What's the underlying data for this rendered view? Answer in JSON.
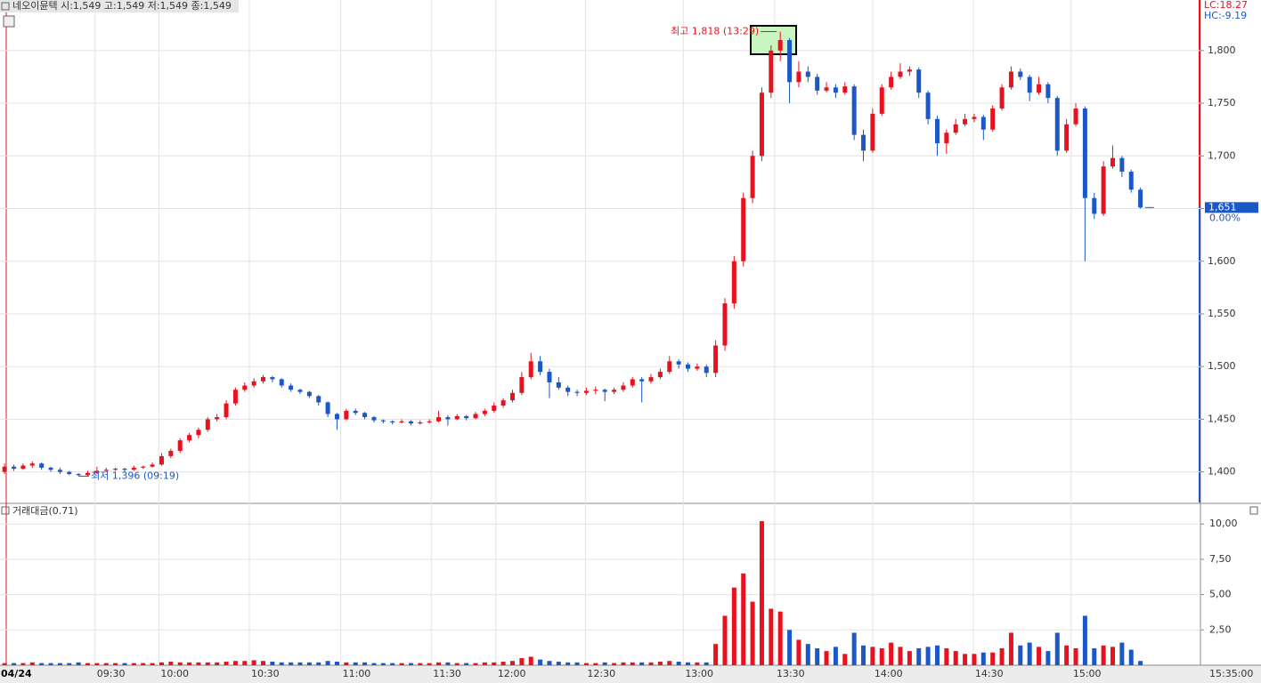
{
  "header": {
    "title": "네오이뮨텍 시:1,549 고:1,549 저:1,549 종:1,549",
    "lc": "LC:18.27",
    "hc": "HC:-9.19"
  },
  "chart_data": [
    {
      "type": "candlestick",
      "up_color": "#e8121e",
      "down_color": "#1b57c6",
      "grid": true,
      "xlim": [
        0,
        130
      ],
      "xticks": [
        {
          "value": 10.3,
          "label": "09:30"
        },
        {
          "value": 17.2,
          "label": "10:00"
        },
        {
          "value": 27,
          "label": "10:30"
        },
        {
          "value": 36.9,
          "label": "11:00"
        },
        {
          "value": 46.7,
          "label": "11:30"
        },
        {
          "value": 53.7,
          "label": "12:00"
        },
        {
          "value": 63.4,
          "label": "12:30"
        },
        {
          "value": 74,
          "label": "13:00"
        },
        {
          "value": 83.9,
          "label": "13:30"
        },
        {
          "value": 94.5,
          "label": "14:00"
        },
        {
          "value": 105.4,
          "label": "14:30"
        },
        {
          "value": 116,
          "label": "15:00"
        }
      ],
      "ylim": [
        1371,
        1848
      ],
      "yticks": [
        {
          "value": 1400,
          "label": "1,400"
        },
        {
          "value": 1450,
          "label": "1,450"
        },
        {
          "value": 1500,
          "label": "1,500"
        },
        {
          "value": 1550,
          "label": "1,550"
        },
        {
          "value": 1600,
          "label": "1,600"
        },
        {
          "value": 1650,
          "label": "1,650"
        },
        {
          "value": 1700,
          "label": "1,700"
        },
        {
          "value": 1750,
          "label": "1,750"
        },
        {
          "value": 1800,
          "label": "1,800"
        }
      ],
      "date": "04/24",
      "end_time": "15:35:00",
      "last_price": {
        "value": 1651,
        "label": "1,651"
      },
      "change": "0.00%",
      "annotations": [
        "최고 1,818 (13:29)",
        "최저 1,396 (09:19)"
      ],
      "candles": [
        [
          1400,
          1408,
          1398,
          1405
        ],
        [
          1405,
          1407,
          1401,
          1403
        ],
        [
          1403,
          1408,
          1402,
          1406
        ],
        [
          1406,
          1410,
          1404,
          1408
        ],
        [
          1408,
          1409,
          1402,
          1404
        ],
        [
          1404,
          1405,
          1400,
          1402
        ],
        [
          1402,
          1404,
          1398,
          1400
        ],
        [
          1400,
          1401,
          1397,
          1398
        ],
        [
          1398,
          1399,
          1396,
          1397
        ],
        [
          1397,
          1401,
          1396,
          1399
        ],
        [
          1399,
          1405,
          1398,
          1401
        ],
        [
          1401,
          1404,
          1400,
          1402
        ],
        [
          1402,
          1404,
          1401,
          1403
        ],
        [
          1403,
          1404,
          1400,
          1402
        ],
        [
          1402,
          1406,
          1401,
          1404
        ],
        [
          1404,
          1406,
          1403,
          1405
        ],
        [
          1405,
          1409,
          1404,
          1407
        ],
        [
          1407,
          1418,
          1406,
          1415
        ],
        [
          1415,
          1422,
          1413,
          1420
        ],
        [
          1420,
          1432,
          1418,
          1430
        ],
        [
          1430,
          1437,
          1428,
          1435
        ],
        [
          1435,
          1442,
          1432,
          1440
        ],
        [
          1440,
          1452,
          1438,
          1450
        ],
        [
          1450,
          1455,
          1448,
          1452
        ],
        [
          1452,
          1468,
          1450,
          1465
        ],
        [
          1465,
          1480,
          1463,
          1478
        ],
        [
          1478,
          1485,
          1476,
          1482
        ],
        [
          1482,
          1489,
          1480,
          1486
        ],
        [
          1486,
          1492,
          1484,
          1490
        ],
        [
          1490,
          1491,
          1485,
          1488
        ],
        [
          1488,
          1489,
          1480,
          1482
        ],
        [
          1482,
          1484,
          1476,
          1478
        ],
        [
          1478,
          1479,
          1474,
          1476
        ],
        [
          1476,
          1477,
          1470,
          1472
        ],
        [
          1472,
          1473,
          1463,
          1466
        ],
        [
          1466,
          1467,
          1452,
          1455
        ],
        [
          1455,
          1456,
          1440,
          1450
        ],
        [
          1450,
          1460,
          1449,
          1458
        ],
        [
          1458,
          1460,
          1454,
          1456
        ],
        [
          1456,
          1457,
          1450,
          1452
        ],
        [
          1452,
          1453,
          1447,
          1449
        ],
        [
          1449,
          1450,
          1446,
          1448
        ],
        [
          1448,
          1449,
          1445,
          1447
        ],
        [
          1447,
          1450,
          1446,
          1448
        ],
        [
          1448,
          1449,
          1444,
          1446
        ],
        [
          1446,
          1449,
          1445,
          1447
        ],
        [
          1447,
          1450,
          1446,
          1448
        ],
        [
          1448,
          1458,
          1447,
          1452
        ],
        [
          1452,
          1454,
          1444,
          1450
        ],
        [
          1450,
          1455,
          1449,
          1453
        ],
        [
          1453,
          1454,
          1449,
          1451
        ],
        [
          1451,
          1457,
          1450,
          1455
        ],
        [
          1455,
          1460,
          1453,
          1458
        ],
        [
          1458,
          1466,
          1456,
          1463
        ],
        [
          1463,
          1470,
          1461,
          1468
        ],
        [
          1468,
          1478,
          1466,
          1475
        ],
        [
          1475,
          1495,
          1473,
          1490
        ],
        [
          1490,
          1513,
          1488,
          1505
        ],
        [
          1505,
          1510,
          1492,
          1495
        ],
        [
          1495,
          1498,
          1470,
          1485
        ],
        [
          1485,
          1490,
          1478,
          1480
        ],
        [
          1480,
          1482,
          1472,
          1476
        ],
        [
          1476,
          1478,
          1472,
          1475
        ],
        [
          1475,
          1480,
          1473,
          1477
        ],
        [
          1477,
          1481,
          1474,
          1478
        ],
        [
          1478,
          1479,
          1467,
          1476
        ],
        [
          1476,
          1480,
          1474,
          1478
        ],
        [
          1478,
          1485,
          1476,
          1482
        ],
        [
          1482,
          1490,
          1480,
          1488
        ],
        [
          1488,
          1490,
          1466,
          1486
        ],
        [
          1486,
          1493,
          1484,
          1490
        ],
        [
          1490,
          1498,
          1488,
          1495
        ],
        [
          1495,
          1510,
          1493,
          1505
        ],
        [
          1505,
          1507,
          1498,
          1502
        ],
        [
          1502,
          1504,
          1495,
          1498
        ],
        [
          1498,
          1503,
          1496,
          1500
        ],
        [
          1500,
          1502,
          1490,
          1494
        ],
        [
          1494,
          1525,
          1490,
          1520
        ],
        [
          1520,
          1565,
          1515,
          1560
        ],
        [
          1560,
          1605,
          1555,
          1600
        ],
        [
          1600,
          1665,
          1595,
          1660
        ],
        [
          1660,
          1705,
          1655,
          1700
        ],
        [
          1700,
          1765,
          1695,
          1760
        ],
        [
          1760,
          1805,
          1755,
          1800
        ],
        [
          1800,
          1818,
          1790,
          1810
        ],
        [
          1810,
          1812,
          1750,
          1770
        ],
        [
          1770,
          1790,
          1765,
          1780
        ],
        [
          1780,
          1785,
          1770,
          1775
        ],
        [
          1775,
          1778,
          1758,
          1762
        ],
        [
          1762,
          1770,
          1760,
          1765
        ],
        [
          1765,
          1768,
          1755,
          1760
        ],
        [
          1760,
          1770,
          1758,
          1766
        ],
        [
          1766,
          1768,
          1715,
          1720
        ],
        [
          1720,
          1725,
          1695,
          1705
        ],
        [
          1705,
          1745,
          1703,
          1740
        ],
        [
          1740,
          1768,
          1738,
          1765
        ],
        [
          1765,
          1780,
          1763,
          1775
        ],
        [
          1775,
          1788,
          1773,
          1780
        ],
        [
          1780,
          1785,
          1776,
          1782
        ],
        [
          1782,
          1784,
          1755,
          1760
        ],
        [
          1760,
          1762,
          1730,
          1735
        ],
        [
          1735,
          1738,
          1700,
          1712
        ],
        [
          1712,
          1725,
          1702,
          1722
        ],
        [
          1722,
          1735,
          1720,
          1730
        ],
        [
          1730,
          1740,
          1728,
          1735
        ],
        [
          1735,
          1740,
          1732,
          1737
        ],
        [
          1737,
          1739,
          1715,
          1725
        ],
        [
          1725,
          1748,
          1723,
          1745
        ],
        [
          1745,
          1768,
          1743,
          1765
        ],
        [
          1765,
          1785,
          1763,
          1780
        ],
        [
          1780,
          1783,
          1772,
          1775
        ],
        [
          1775,
          1777,
          1752,
          1760
        ],
        [
          1760,
          1775,
          1758,
          1768
        ],
        [
          1768,
          1770,
          1750,
          1755
        ],
        [
          1755,
          1757,
          1700,
          1705
        ],
        [
          1705,
          1735,
          1703,
          1730
        ],
        [
          1730,
          1750,
          1728,
          1745
        ],
        [
          1745,
          1747,
          1600,
          1660
        ],
        [
          1660,
          1665,
          1640,
          1645
        ],
        [
          1645,
          1695,
          1643,
          1690
        ],
        [
          1690,
          1710,
          1688,
          1698
        ],
        [
          1698,
          1700,
          1680,
          1685
        ],
        [
          1685,
          1687,
          1665,
          1668
        ],
        [
          1668,
          1670,
          1650,
          1651
        ]
      ]
    },
    {
      "type": "bar",
      "title": "거래대금(0.71)",
      "ylim": [
        0,
        11.4
      ],
      "yticks": [
        {
          "value": 2.5,
          "label": "2,50"
        },
        {
          "value": 5,
          "label": "5,00"
        },
        {
          "value": 7.5,
          "label": "7,50"
        },
        {
          "value": 10,
          "label": "10,00"
        }
      ],
      "values": [
        0.15,
        0.15,
        0.15,
        0.2,
        0.15,
        0.15,
        0.15,
        0.15,
        0.2,
        0.15,
        0.15,
        0.15,
        0.15,
        0.15,
        0.15,
        0.15,
        0.15,
        0.2,
        0.25,
        0.2,
        0.2,
        0.2,
        0.2,
        0.2,
        0.25,
        0.3,
        0.3,
        0.35,
        0.3,
        0.25,
        0.2,
        0.2,
        0.2,
        0.2,
        0.2,
        0.3,
        0.25,
        0.2,
        0.2,
        0.2,
        0.15,
        0.15,
        0.15,
        0.15,
        0.15,
        0.15,
        0.15,
        0.2,
        0.2,
        0.15,
        0.15,
        0.15,
        0.2,
        0.2,
        0.25,
        0.3,
        0.5,
        0.6,
        0.4,
        0.3,
        0.25,
        0.2,
        0.2,
        0.15,
        0.15,
        0.2,
        0.15,
        0.2,
        0.2,
        0.2,
        0.2,
        0.25,
        0.3,
        0.25,
        0.2,
        0.2,
        0.2,
        1.5,
        3.5,
        5.5,
        6.5,
        4.5,
        10.2,
        4.0,
        3.8,
        2.5,
        1.8,
        1.5,
        1.2,
        1.0,
        1.3,
        0.8,
        2.3,
        1.4,
        1.3,
        1.2,
        1.6,
        1.3,
        1.0,
        1.2,
        1.3,
        1.4,
        1.2,
        1.0,
        0.8,
        0.8,
        0.9,
        0.9,
        1.2,
        2.3,
        1.4,
        1.6,
        1.3,
        1.0,
        2.3,
        1.4,
        1.2,
        3.5,
        1.2,
        1.4,
        1.3,
        1.6,
        1.1,
        0.3
      ]
    }
  ]
}
